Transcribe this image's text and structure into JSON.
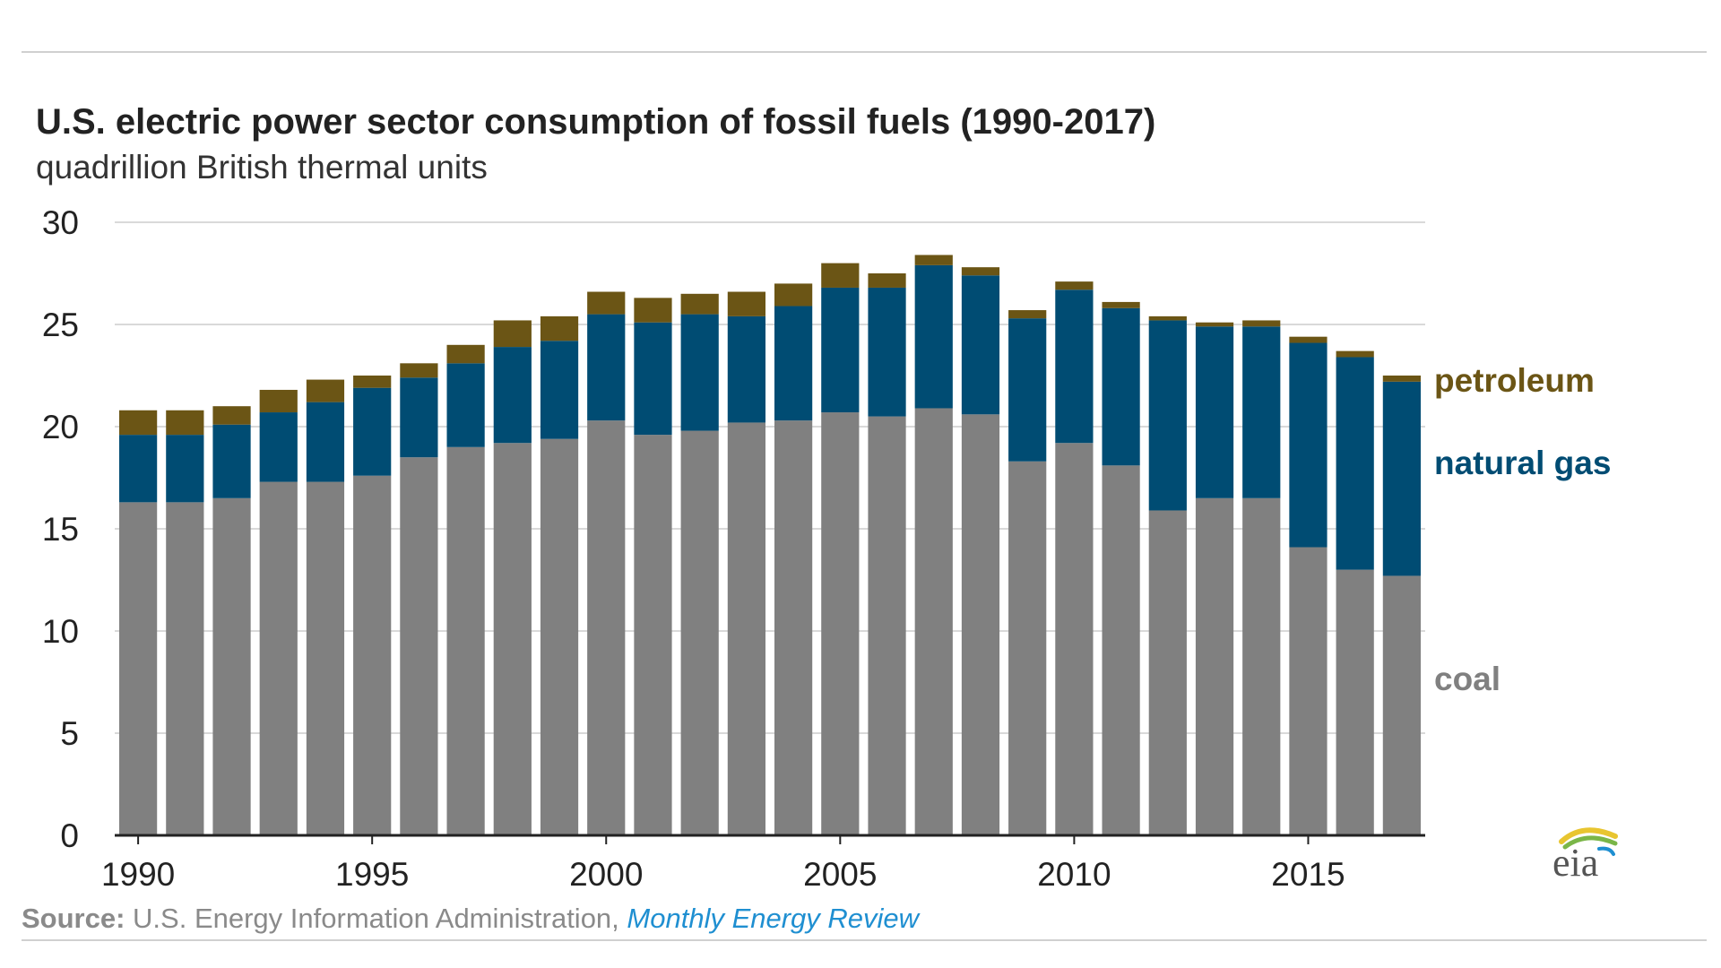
{
  "title": "U.S. electric power sector consumption of fossil fuels (1990-2017)",
  "subtitle": "quadrillion British thermal units",
  "source": {
    "label": "Source:",
    "text": "U.S. Energy Information Administration,",
    "link": "Monthly Energy Review"
  },
  "logo_text": "eia",
  "colors": {
    "coal": "#808080",
    "natural_gas": "#004c73",
    "petroleum": "#6b5515",
    "grid": "#d9d9d9",
    "axis": "#222222",
    "link": "#1f8fd1"
  },
  "chart_data": {
    "type": "bar",
    "stacked": true,
    "title": "U.S. electric power sector consumption of fossil fuels (1990-2017)",
    "ylabel": "quadrillion British thermal units",
    "xlabel": "",
    "ylim": [
      0,
      30
    ],
    "yticks": [
      0,
      5,
      10,
      15,
      20,
      25,
      30
    ],
    "xtick_labels": [
      "1990",
      "1995",
      "2000",
      "2005",
      "2010",
      "2015"
    ],
    "grid": true,
    "categories": [
      1990,
      1991,
      1992,
      1993,
      1994,
      1995,
      1996,
      1997,
      1998,
      1999,
      2000,
      2001,
      2002,
      2003,
      2004,
      2005,
      2006,
      2007,
      2008,
      2009,
      2010,
      2011,
      2012,
      2013,
      2014,
      2015,
      2016,
      2017
    ],
    "series": [
      {
        "name": "coal",
        "label": "coal",
        "values": [
          16.3,
          16.3,
          16.5,
          17.3,
          17.3,
          17.6,
          18.5,
          19.0,
          19.2,
          19.4,
          20.3,
          19.6,
          19.8,
          20.2,
          20.3,
          20.7,
          20.5,
          20.9,
          20.6,
          18.3,
          19.2,
          18.1,
          15.9,
          16.5,
          16.5,
          14.1,
          13.0,
          12.7
        ]
      },
      {
        "name": "natural gas",
        "label": "natural gas",
        "values": [
          3.3,
          3.3,
          3.6,
          3.4,
          3.9,
          4.3,
          3.9,
          4.1,
          4.7,
          4.8,
          5.2,
          5.5,
          5.7,
          5.2,
          5.6,
          6.1,
          6.3,
          7.0,
          6.8,
          7.0,
          7.5,
          7.7,
          9.3,
          8.4,
          8.4,
          10.0,
          10.4,
          9.5
        ]
      },
      {
        "name": "petroleum",
        "label": "petroleum",
        "values": [
          1.2,
          1.2,
          0.9,
          1.1,
          1.1,
          0.6,
          0.7,
          0.9,
          1.3,
          1.2,
          1.1,
          1.2,
          1.0,
          1.2,
          1.1,
          1.2,
          0.7,
          0.5,
          0.4,
          0.4,
          0.4,
          0.3,
          0.2,
          0.2,
          0.3,
          0.3,
          0.3,
          0.3
        ]
      }
    ],
    "legend_placement": "right, inline labels"
  }
}
